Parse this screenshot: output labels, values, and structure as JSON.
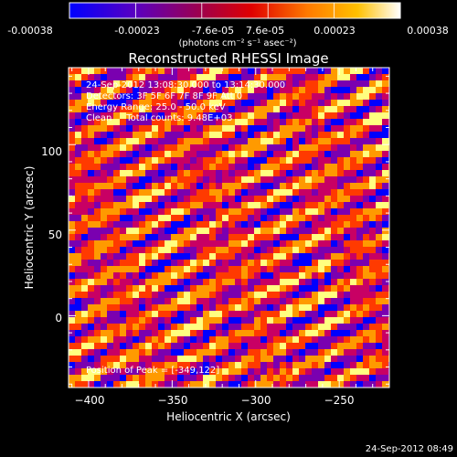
{
  "colorbar": {
    "tick_labels": [
      "-0.00038",
      "-0.00023",
      "-7.6e-05",
      "7.6e-05",
      "0.00023",
      "0.00038"
    ],
    "min": -0.00038,
    "max": 0.00038,
    "units_label": "(photons cm⁻² s⁻¹ asec⁻²)"
  },
  "chart_data": {
    "type": "heatmap",
    "title": "Reconstructed RHESSI Image",
    "xlabel": "Heliocentric X (arcsec)",
    "ylabel": "Heliocentric Y (arcsec)",
    "xlim": [
      -412,
      -220
    ],
    "ylim": [
      -42,
      145
    ],
    "x_ticks": [
      -400,
      -350,
      -300,
      -250
    ],
    "y_ticks": [
      0,
      50,
      100
    ],
    "x_tick_labels": [
      "−400",
      "−350",
      "−300",
      "−250"
    ],
    "y_tick_labels": [
      "0",
      "50",
      "100"
    ],
    "pattern": "diagonal fringe stripes descending toward lower-right, period ~30 arcsec",
    "value_range": [
      -0.00038,
      0.00038
    ],
    "colormap": [
      "#0000ff",
      "#7a00b0",
      "#c80064",
      "#ff3a00",
      "#ff9a00",
      "#ffff80"
    ],
    "peak_position": [
      -349,
      122
    ]
  },
  "annotations": {
    "line1": "24-Sep-2012 13:08:30.000 to 13:14:30.000",
    "line2": "Detectors: 3F 5F 6F 7F 8F 9F Att 0",
    "line3": "Energy Range: 25.0 - 50.0 keV",
    "line4": "Clean     Total counts: 9.48E+03",
    "peak": "Position of Peak = [-349,122]"
  },
  "timestamp": "24-Sep-2012 08:49"
}
